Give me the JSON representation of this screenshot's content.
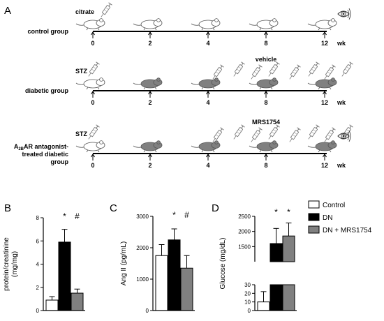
{
  "panel_a": {
    "letter": "A",
    "wk_label": "wk",
    "groups": [
      {
        "label_lines": [
          "control group"
        ],
        "treatment_label": "citrate",
        "injections_label": "",
        "mice_states": [
          "normal",
          "normal",
          "normal",
          "normal",
          "normal"
        ],
        "weeks": [
          "0",
          "2",
          "4",
          "8",
          "12"
        ],
        "has_eye": true,
        "injection_count": 0
      },
      {
        "label_lines": [
          "diabetic group"
        ],
        "treatment_label": "STZ",
        "injections_label": "vehicle",
        "mice_states": [
          "normal",
          "diabetic",
          "diabetic",
          "diabetic",
          "diabetic"
        ],
        "weeks": [
          "0",
          "2",
          "4",
          "8",
          "12"
        ],
        "has_eye": false,
        "injection_count": 8
      },
      {
        "label_lines": [
          "A2BAR antagonist-",
          "treated diabetic",
          "group"
        ],
        "label_rich": {
          "pre": "A",
          "sub": "2B",
          "post": "AR antagonist-"
        },
        "treatment_label": "STZ",
        "injections_label": "MRS1754",
        "mice_states": [
          "normal",
          "diabetic",
          "diabetic",
          "diabetic",
          "diabetic"
        ],
        "weeks": [
          "0",
          "2",
          "4",
          "8",
          "12"
        ],
        "has_eye": true,
        "injection_count": 8
      }
    ],
    "colors": {
      "normal_mouse": "#ffffff",
      "diabetic_mouse": "#808080",
      "syringe": "#888888"
    }
  },
  "legend": {
    "items": [
      {
        "label": "Control",
        "color": "#ffffff"
      },
      {
        "label": "DN",
        "color": "#000000"
      },
      {
        "label": "DN + MRS1754",
        "color": "#808080"
      }
    ]
  },
  "chart_data": [
    {
      "panel": "B",
      "type": "bar",
      "categories": [
        "Control",
        "DN",
        "DN + MRS1754"
      ],
      "values": [
        0.9,
        5.9,
        1.5
      ],
      "errors": [
        0.3,
        1.1,
        0.35
      ],
      "ylabel_lines": [
        "protein/creatinine",
        "(mg/mg)"
      ],
      "ylim": [
        0,
        8
      ],
      "yticks": [
        "0",
        "2",
        "4",
        "6",
        "8"
      ],
      "significance": [
        "",
        "*",
        "#"
      ],
      "colors": [
        "#ffffff",
        "#000000",
        "#808080"
      ]
    },
    {
      "panel": "C",
      "type": "bar",
      "categories": [
        "Control",
        "DN",
        "DN + MRS1754"
      ],
      "values": [
        1750,
        2250,
        1350
      ],
      "errors": [
        350,
        350,
        400
      ],
      "ylabel_lines": [
        "Ang II (pg/mL)"
      ],
      "ylim": [
        0,
        3000
      ],
      "yticks": [
        "0",
        "1000",
        "2000",
        "3000"
      ],
      "significance": [
        "",
        "*",
        "#"
      ],
      "colors": [
        "#ffffff",
        "#000000",
        "#808080"
      ]
    },
    {
      "panel": "D",
      "type": "bar",
      "categories": [
        "Control",
        "DN",
        "DN + MRS1754"
      ],
      "values": [
        10,
        1600,
        1850
      ],
      "errors": [
        12,
        500,
        430
      ],
      "ylabel_lines": [
        "Glucose (mg/dL)"
      ],
      "axis_break": true,
      "lower_range": [
        0,
        30
      ],
      "upper_range": [
        1000,
        2500
      ],
      "yticks_lower": [
        "0",
        "10",
        "20",
        "30"
      ],
      "yticks_upper": [
        "1500",
        "2000",
        "2500"
      ],
      "significance": [
        "",
        "*",
        "*"
      ],
      "colors": [
        "#ffffff",
        "#000000",
        "#808080"
      ]
    }
  ]
}
